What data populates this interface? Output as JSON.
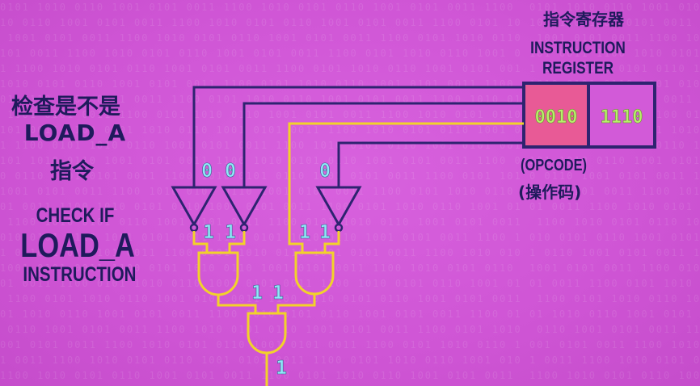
{
  "register": {
    "title_zh": "指令寄存器",
    "title_en_line1": "INSTRUCTION",
    "title_en_line2": "REGISTER",
    "opcode_bits": "0010",
    "address_bits": "1110",
    "opcode_caption_en": "(OPCODE)",
    "opcode_caption_zh": "(操作码)"
  },
  "left_caption": {
    "zh_line1": "检查是不是",
    "zh_line2": "LOAD_A",
    "zh_line3": "指令",
    "en_line1": "CHECK IF",
    "en_line2": "LOAD_A",
    "en_line3": "INSTRUCTION"
  },
  "circuit": {
    "not_inputs": [
      "0",
      "0",
      "0"
    ],
    "not_outputs": [
      "1",
      "1",
      "1",
      "1"
    ],
    "and_intermediate": [
      "1",
      "1"
    ],
    "final_output": "1"
  },
  "colors": {
    "background": "#d25ad8",
    "wire_dark": "#2e2370",
    "wire_yellow": "#f2d22a",
    "register_fill": "#e85a96",
    "register_bits": "#b7f06a",
    "bit_label": "#8ee8f8",
    "text_dark": "#1f1a5c"
  },
  "background_binary": "0101 1010 0110 1001 0101 0011 1100 1010 0101 0110 1001 0101 0011 1100"
}
